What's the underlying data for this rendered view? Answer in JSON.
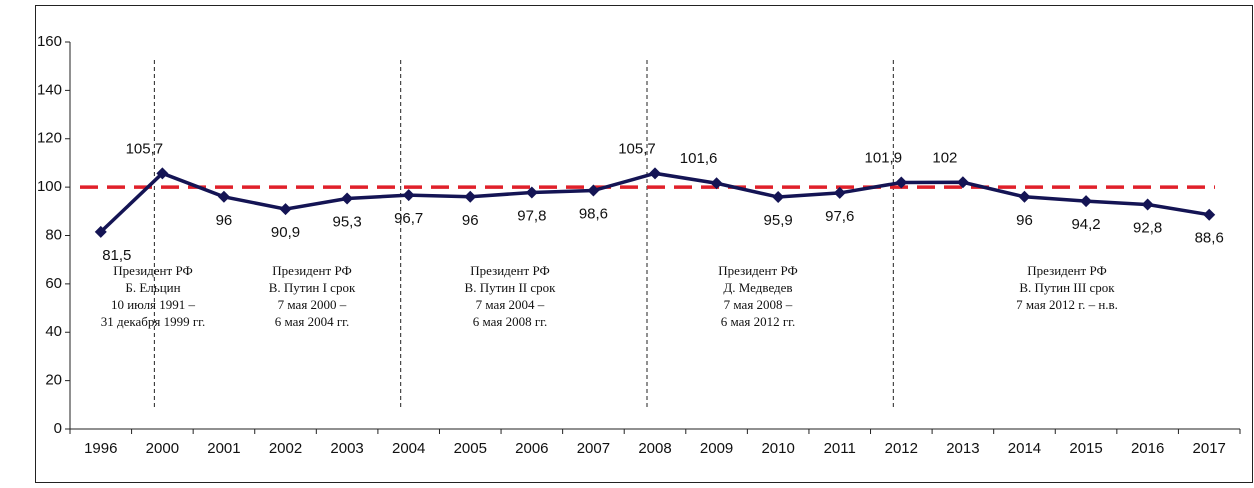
{
  "chart_data": {
    "type": "line",
    "categories": [
      "1996",
      "2000",
      "2001",
      "2002",
      "2003",
      "2004",
      "2005",
      "2006",
      "2007",
      "2008",
      "2009",
      "2010",
      "2011",
      "2012",
      "2013",
      "2014",
      "2015",
      "2016",
      "2017"
    ],
    "values": [
      81.5,
      105.7,
      96,
      90.9,
      95.3,
      96.7,
      96,
      97.8,
      98.6,
      105.7,
      101.6,
      95.9,
      97.6,
      101.9,
      102,
      96,
      94.2,
      92.8,
      88.6
    ],
    "value_labels": [
      "81,5",
      "105,7",
      "96",
      "90,9",
      "95,3",
      "96,7",
      "96",
      "97,8",
      "98,6",
      "105,7",
      "101,6",
      "95,9",
      "97,6",
      "101,9",
      "102",
      "96",
      "94,2",
      "92,8",
      "88,6"
    ],
    "color": "#141454",
    "reference_line": {
      "value": 100,
      "color": "#e0202a"
    },
    "ylim": [
      0,
      160
    ],
    "yticks": [
      0,
      20,
      40,
      60,
      80,
      100,
      120,
      140,
      160
    ],
    "periods": [
      {
        "lines": [
          "Президент РФ",
          "Б. Ельцин",
          "10 июля 1991 –",
          "31 декабря 1999 гг."
        ]
      },
      {
        "lines": [
          "Президент РФ",
          "В. Путин I срок",
          "7 мая 2000 –",
          "6 мая 2004 гг."
        ]
      },
      {
        "lines": [
          "Президент РФ",
          "В. Путин II срок",
          "7 мая 2004 –",
          "6 мая 2008 гг."
        ]
      },
      {
        "lines": [
          "Президент РФ",
          "Д. Медведев",
          "7 мая 2008 –",
          "6 мая 2012 гг."
        ]
      },
      {
        "lines": [
          "Президент РФ",
          "В. Путин III срок",
          "7 мая 2012 г. – н.в."
        ]
      }
    ]
  }
}
